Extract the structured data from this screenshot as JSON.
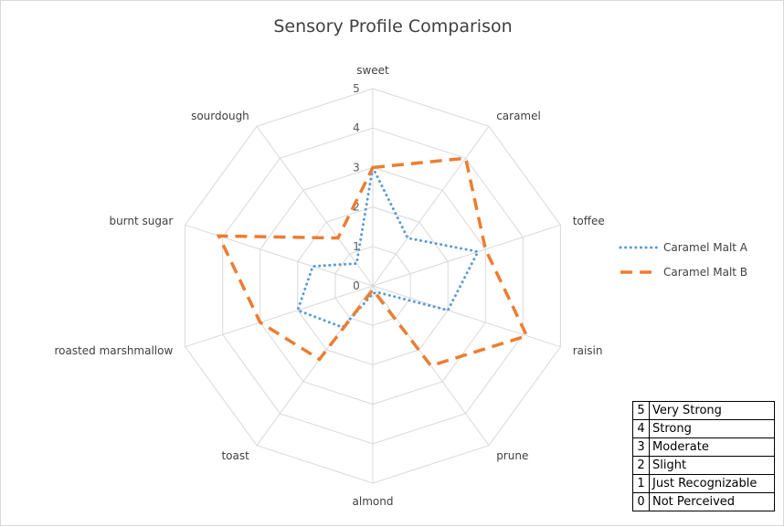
{
  "chart_data": {
    "type": "radar",
    "title": "Sensory Profile Comparison",
    "categories": [
      "sweet",
      "caramel",
      "toffee",
      "raisin",
      "prune",
      "almond",
      "toast",
      "roasted marshmallow",
      "burnt sugar",
      "sourdough"
    ],
    "rlim": [
      0,
      5
    ],
    "ticks": [
      0,
      1,
      2,
      3,
      4,
      5
    ],
    "grid": true,
    "legend_position": "right",
    "series": [
      {
        "name": "Caramel Malt A",
        "values": [
          3,
          1.5,
          2.8,
          2,
          0.2,
          0.2,
          1.3,
          2,
          1.6,
          0.7
        ],
        "color": "#5b9bd5",
        "line_style": "dotted"
      },
      {
        "name": "Caramel Malt B",
        "values": [
          3,
          4,
          3,
          4.1,
          2.5,
          0.1,
          2.3,
          3,
          4.1,
          1.5
        ],
        "color": "#ed7d31",
        "line_style": "dashed"
      }
    ]
  },
  "scale_table": {
    "rows": [
      {
        "num": "5",
        "label": "Very Strong"
      },
      {
        "num": "4",
        "label": "Strong"
      },
      {
        "num": "3",
        "label": "Moderate"
      },
      {
        "num": "2",
        "label": "Slight"
      },
      {
        "num": "1",
        "label": "Just Recognizable"
      },
      {
        "num": "0",
        "label": "Not Perceived"
      }
    ]
  }
}
